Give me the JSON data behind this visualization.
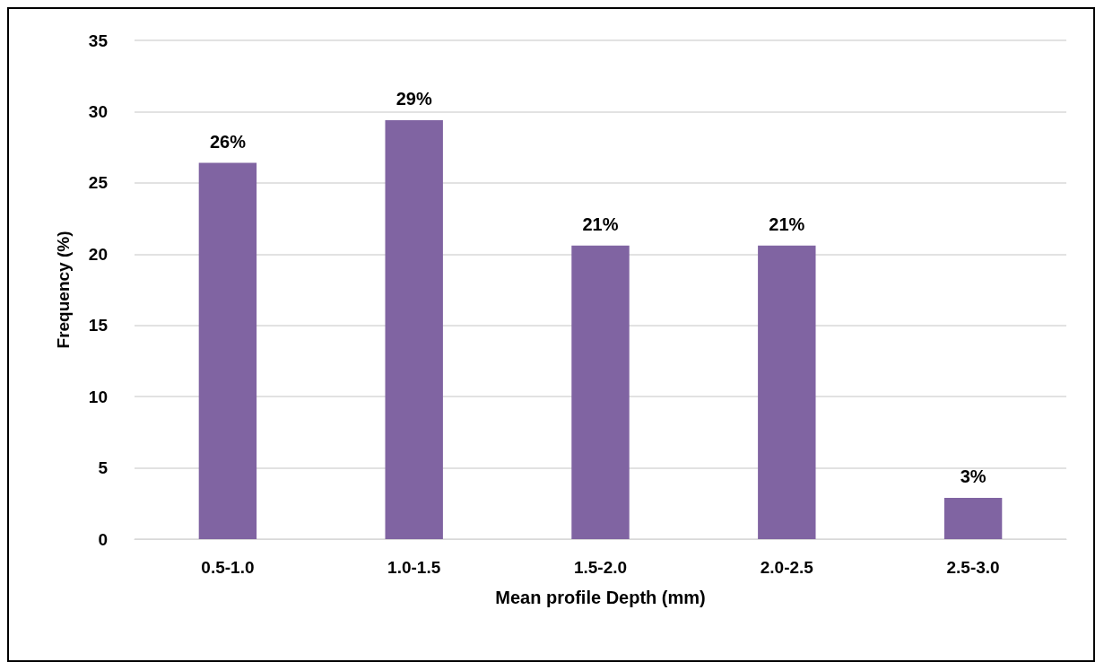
{
  "chart_data": {
    "type": "bar",
    "xlabel": "Mean profile Depth (mm)",
    "ylabel": "Frequency (%)",
    "categories": [
      "0.5-1.0",
      "1.0-1.5",
      "1.5-2.0",
      "2.0-2.5",
      "2.5-3.0"
    ],
    "values": [
      26.4,
      29.4,
      20.6,
      20.6,
      2.9
    ],
    "value_labels": [
      "26%",
      "29%",
      "21%",
      "21%",
      "3%"
    ],
    "color": "#8064a2",
    "ylim": [
      0,
      35
    ],
    "yticks": [
      0,
      5,
      10,
      15,
      20,
      25,
      30,
      35
    ],
    "grid": "y"
  }
}
